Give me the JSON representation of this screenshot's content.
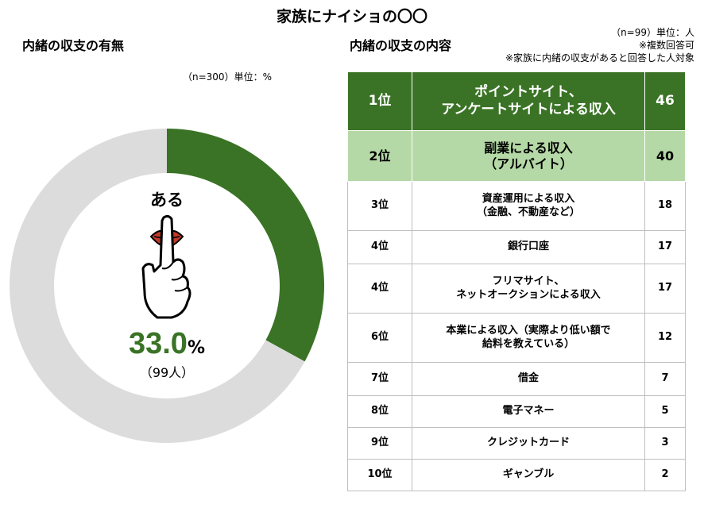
{
  "title": "家族にナイショの〇〇",
  "left": {
    "subtitle": "内緒の収支の有無",
    "note": "（n=300）単位：%",
    "center_label": "ある",
    "percent_value": "33.0",
    "percent_sign": "%",
    "count": "（99人）"
  },
  "right": {
    "subtitle": "内緒の収支の内容",
    "note_n": "（n=99）単位：人",
    "note_multi": "※複数回答可",
    "note_target": "※家族に内緒の収支があると回答した人対象"
  },
  "colors": {
    "accent": "#3a7325",
    "light_green": "#b5d9a6",
    "ring_gray": "#dcdcdc"
  },
  "chart_data": [
    {
      "type": "pie",
      "donut": true,
      "labels": [
        "ある",
        ""
      ],
      "values": [
        33.0,
        67.0
      ],
      "colors": [
        "#3a7325",
        "#dcdcdc"
      ]
    },
    {
      "type": "table",
      "columns": [
        "rank",
        "item",
        "count"
      ],
      "rows": [
        {
          "rank": "1位",
          "item": [
            "ポイントサイト、",
            "アンケートサイトによる収入"
          ],
          "value": 46
        },
        {
          "rank": "2位",
          "item": [
            "副業による収入",
            "（アルバイト）"
          ],
          "value": 40
        },
        {
          "rank": "3位",
          "item": [
            "資産運用による収入",
            "（金融、不動産など）"
          ],
          "value": 18
        },
        {
          "rank": "4位",
          "item": [
            "銀行口座"
          ],
          "value": 17
        },
        {
          "rank": "4位",
          "item": [
            "フリマサイト、",
            "ネットオークションによる収入"
          ],
          "value": 17
        },
        {
          "rank": "6位",
          "item": [
            "本業による収入（実際より低い額で",
            "給料を教えている）"
          ],
          "value": 12
        },
        {
          "rank": "7位",
          "item": [
            "借金"
          ],
          "value": 7
        },
        {
          "rank": "8位",
          "item": [
            "電子マネー"
          ],
          "value": 5
        },
        {
          "rank": "9位",
          "item": [
            "クレジットカード"
          ],
          "value": 3
        },
        {
          "rank": "10位",
          "item": [
            "ギャンブル"
          ],
          "value": 2
        }
      ]
    }
  ]
}
